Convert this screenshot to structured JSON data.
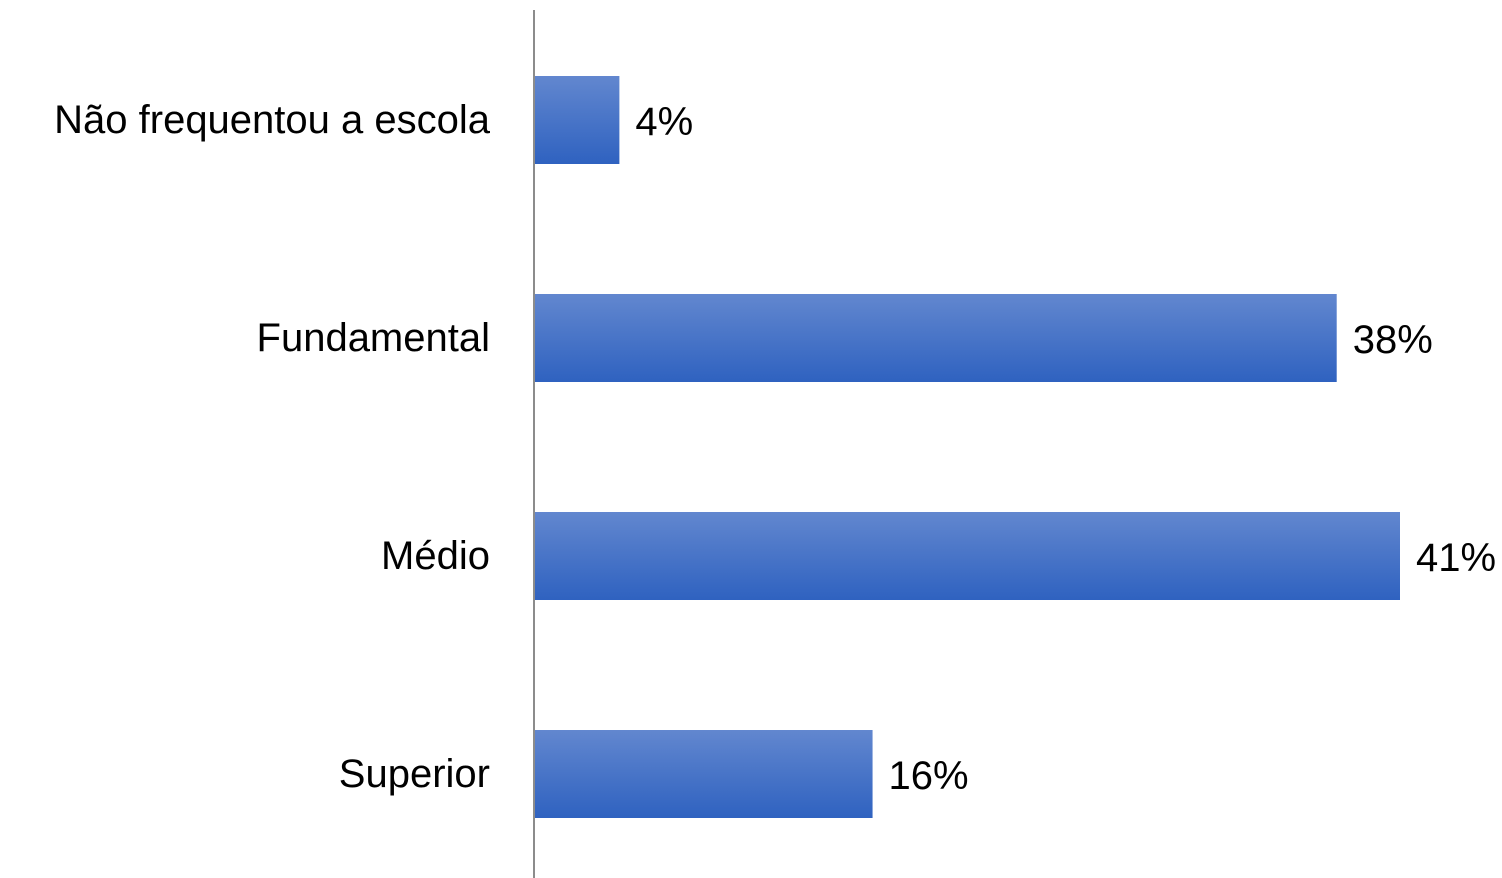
{
  "chart_data": {
    "type": "bar",
    "orientation": "horizontal",
    "categories": [
      "Não frequentou a escola",
      "Fundamental",
      "Médio",
      "Superior"
    ],
    "values": [
      4,
      38,
      41,
      16
    ],
    "value_labels": [
      "4%",
      "38%",
      "41%",
      "16%"
    ],
    "unit": "%",
    "xlim": [
      0,
      41
    ],
    "grid": false,
    "legend": "none",
    "colors": {
      "bar_top": "#6287CF",
      "bar_bottom": "#2F62C0",
      "axis": "#8C8C8C"
    }
  }
}
